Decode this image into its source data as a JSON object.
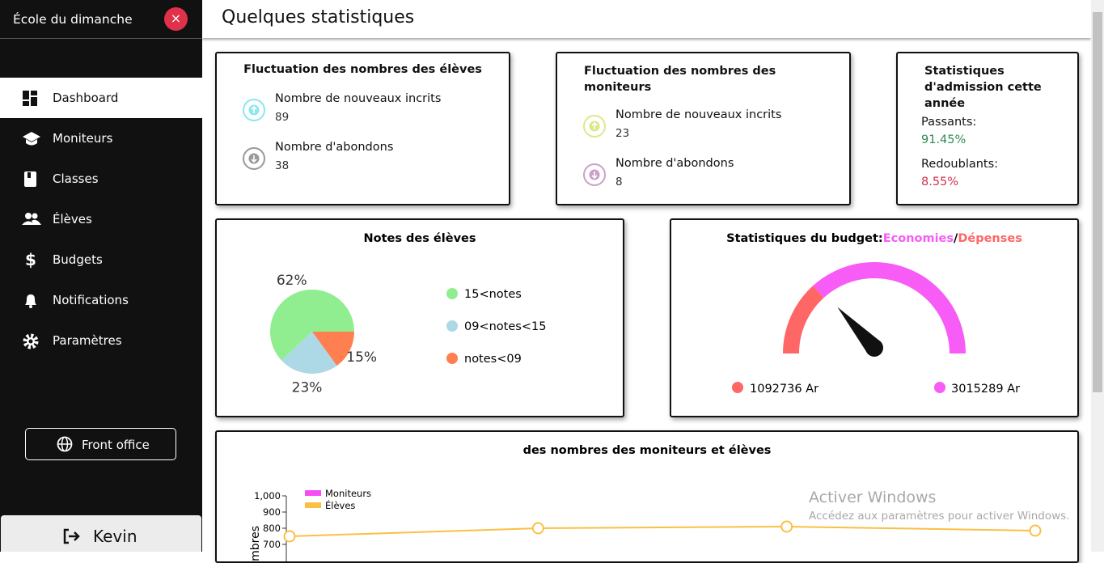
{
  "sidebar": {
    "title": "École du dimanche",
    "close": "×",
    "menu": [
      "Dashboard",
      "Moniteurs",
      "Classes",
      "Élèves",
      "Budgets",
      "Notifications",
      "Paramètres"
    ],
    "front_office": "Front office",
    "user": "Kevin"
  },
  "header": {
    "title": "Quelques statistiques"
  },
  "stats": [
    {
      "title": "Fluctuation des nombres des élèves",
      "items": [
        {
          "label": "Nombre de nouveaux incrits",
          "value": 89
        },
        {
          "label": "Nombre d'abondons",
          "value": 38
        }
      ]
    },
    {
      "title": "Fluctuation des nombres des moniteurs",
      "items": [
        {
          "label": "Nombre de nouveaux incrits",
          "value": 23
        },
        {
          "label": "Nombre d'abondons",
          "value": 8
        }
      ]
    }
  ],
  "admission": {
    "title": "Statistiques d'admission cette année",
    "items": [
      {
        "label": "Passants:",
        "value": "91.45%"
      },
      {
        "label": "Redoublants:",
        "value": "8.55%"
      }
    ]
  },
  "chart_data": [
    {
      "type": "pie",
      "title": "Notes des élèves",
      "categories": [
        "15<notes",
        "09<notes<15",
        "notes<09"
      ],
      "values": [
        62,
        23,
        15
      ],
      "value_labels": [
        "62%",
        "23%",
        "15%"
      ],
      "colors": [
        "#90ee90",
        "#add8e6",
        "#ff7f50"
      ]
    },
    {
      "type": "gauge",
      "title": "Statistiques du budget:",
      "separator": "/",
      "series": [
        {
          "name": "Economies",
          "color": "#f75cf7",
          "values": [
            3015289
          ],
          "value_labels": [
            "3015289 Ar"
          ]
        },
        {
          "name": "Dépenses",
          "color": "#ff6666",
          "values": [
            1092736
          ],
          "value_labels": [
            "1092736 Ar"
          ]
        }
      ]
    },
    {
      "type": "line",
      "title": "des nombres des moniteurs et élèves",
      "y_label": "Nombres",
      "categories": [
        null,
        null,
        null,
        null
      ],
      "series": [
        {
          "name": "Moniteurs",
          "color": "#f54cf5",
          "values": [
            null,
            null,
            null,
            null
          ]
        },
        {
          "name": "Élèves",
          "color": "#fbbf45",
          "values": [
            750,
            800,
            810,
            785
          ]
        }
      ],
      "ylim": [
        0,
        1000
      ],
      "yticks": [
        700,
        800,
        900,
        {
          "value": 1000,
          "label": "1,000"
        }
      ]
    }
  ],
  "watermark": {
    "title": "Activer Windows",
    "text": "Accédez aux paramètres pour activer Windows."
  }
}
